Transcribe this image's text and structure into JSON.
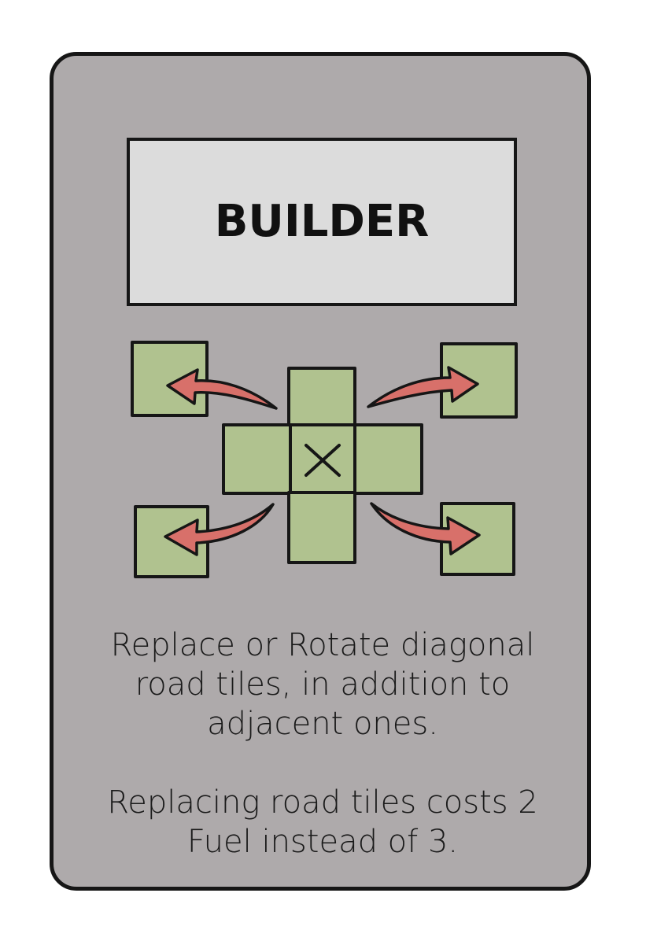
{
  "card": {
    "title": "BUILDER",
    "rule_1": "Replace or Rotate diagonal road tiles, in addition to adjacent ones.",
    "rule_2": "Replacing road tiles costs 2 Fuel instead of 3."
  },
  "diagram": {
    "center_mark_icon": "x-mark-icon",
    "tile_color": "#b0c28f",
    "arrow_color": "#d8706a",
    "card_color": "#aeaaab",
    "title_box_color": "#dcdcdc"
  }
}
